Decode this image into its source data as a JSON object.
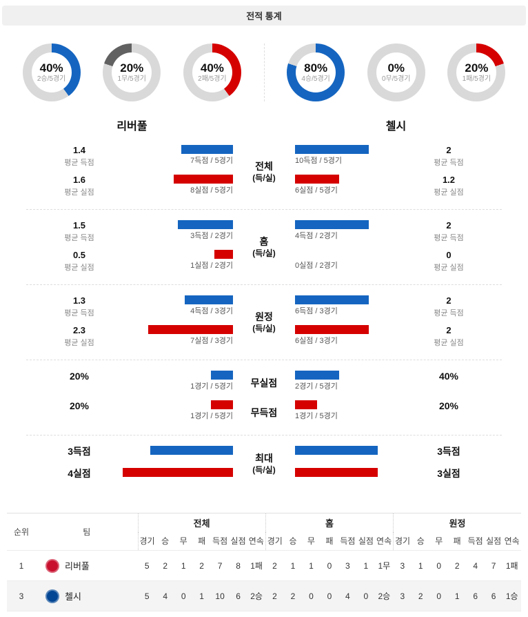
{
  "colors": {
    "blue": "#1565c0",
    "red": "#d50000",
    "dark": "#616161",
    "gray": "#d9d9d9"
  },
  "header": {
    "title": "전적 통계"
  },
  "teams": {
    "left": {
      "name": "리버풀",
      "logo_color": "#c8102e"
    },
    "right": {
      "name": "첼시",
      "logo_color": "#034694"
    }
  },
  "chart_data": {
    "types": [
      "donut",
      "bar",
      "table"
    ],
    "donuts": {
      "left": [
        {
          "pct": 40,
          "label": "40%",
          "sub": "2승/5경기",
          "color": "blue",
          "reverse": false
        },
        {
          "pct": 20,
          "label": "20%",
          "sub": "1무/5경기",
          "color": "dark",
          "reverse": true
        },
        {
          "pct": 40,
          "label": "40%",
          "sub": "2패/5경기",
          "color": "red",
          "reverse": false
        }
      ],
      "right": [
        {
          "pct": 80,
          "label": "80%",
          "sub": "4승/5경기",
          "color": "blue",
          "reverse": false
        },
        {
          "pct": 0,
          "label": "0%",
          "sub": "0무/5경기",
          "color": "dark",
          "reverse": false
        },
        {
          "pct": 20,
          "label": "20%",
          "sub": "1패/5경기",
          "color": "red",
          "reverse": false
        }
      ]
    },
    "sections": [
      {
        "id": "overall",
        "center": {
          "title": "전체",
          "subtitle": "(득/실)"
        },
        "bar_scale": 53.5,
        "rows": [
          {
            "color": "blue",
            "left": {
              "value": "1.4",
              "value_sub": "평균 득점",
              "bar": 1.4,
              "bar_label": "7득점 / 5경기"
            },
            "right": {
              "value": "2",
              "value_sub": "평균 득점",
              "bar": 2,
              "bar_label": "10득점 / 5경기"
            }
          },
          {
            "color": "red",
            "left": {
              "value": "1.6",
              "value_sub": "평균 실점",
              "bar": 1.6,
              "bar_label": "8실점 / 5경기"
            },
            "right": {
              "value": "1.2",
              "value_sub": "평균 실점",
              "bar": 1.2,
              "bar_label": "6실점 / 5경기"
            }
          }
        ]
      },
      {
        "id": "home",
        "center": {
          "title": "홈",
          "subtitle": "(득/실)"
        },
        "bar_scale": 53.5,
        "rows": [
          {
            "color": "blue",
            "left": {
              "value": "1.5",
              "value_sub": "평균 득점",
              "bar": 1.5,
              "bar_label": "3득점 / 2경기"
            },
            "right": {
              "value": "2",
              "value_sub": "평균 득점",
              "bar": 2,
              "bar_label": "4득점 / 2경기"
            }
          },
          {
            "color": "red",
            "left": {
              "value": "0.5",
              "value_sub": "평균 실점",
              "bar": 0.5,
              "bar_label": "1실점 / 2경기"
            },
            "right": {
              "value": "0",
              "value_sub": "평균 실점",
              "bar": 0,
              "bar_label": "0실점 / 2경기"
            }
          }
        ]
      },
      {
        "id": "away",
        "center": {
          "title": "원정",
          "subtitle": "(득/실)"
        },
        "bar_scale": 53.5,
        "rows": [
          {
            "color": "blue",
            "left": {
              "value": "1.3",
              "value_sub": "평균 득점",
              "bar": 1.3,
              "bar_label": "4득점 / 3경기"
            },
            "right": {
              "value": "2",
              "value_sub": "평균 득점",
              "bar": 2,
              "bar_label": "6득점 / 3경기"
            }
          },
          {
            "color": "red",
            "left": {
              "value": "2.3",
              "value_sub": "평균 실점",
              "bar": 2.3,
              "bar_label": "7실점 / 3경기"
            },
            "right": {
              "value": "2",
              "value_sub": "평균 실점",
              "bar": 2,
              "bar_label": "6실점 / 3경기"
            }
          }
        ]
      },
      {
        "id": "shutout",
        "bar_scale": 1.6,
        "rows": [
          {
            "color": "blue",
            "center_label": "무실점",
            "left": {
              "value": "20%",
              "bar": 20,
              "bar_label": "1경기 / 5경기"
            },
            "right": {
              "value": "40%",
              "bar": 40,
              "bar_label": "2경기 / 5경기"
            }
          },
          {
            "color": "red",
            "center_label": "무득점",
            "left": {
              "value": "20%",
              "bar": 20,
              "bar_label": "1경기 / 5경기"
            },
            "right": {
              "value": "20%",
              "bar": 20,
              "bar_label": "1경기 / 5경기"
            }
          }
        ]
      },
      {
        "id": "max",
        "center": {
          "title": "최대",
          "subtitle": "(득/실)"
        },
        "bar_scale": 40,
        "rows": [
          {
            "color": "blue",
            "left": {
              "value": "3득점",
              "bar": 3
            },
            "right": {
              "value": "3득점",
              "bar": 3
            }
          },
          {
            "color": "red",
            "left": {
              "value": "4실점",
              "bar": 4
            },
            "right": {
              "value": "3실점",
              "bar": 3
            }
          }
        ]
      }
    ],
    "table": {
      "rank_header": "순위",
      "team_header": "팀",
      "group_headers": [
        "전체",
        "홈",
        "원정"
      ],
      "stat_headers": [
        "경기",
        "승",
        "무",
        "패",
        "득점",
        "실점",
        "연속"
      ],
      "rows": [
        {
          "rank": "1",
          "team": "리버풀",
          "logo_color": "#c8102e",
          "overall": [
            "5",
            "2",
            "1",
            "2",
            "7",
            "8",
            "1패"
          ],
          "home": [
            "2",
            "1",
            "1",
            "0",
            "3",
            "1",
            "1무"
          ],
          "away": [
            "3",
            "1",
            "0",
            "2",
            "4",
            "7",
            "1패"
          ]
        },
        {
          "rank": "3",
          "team": "첼시",
          "logo_color": "#034694",
          "overall": [
            "5",
            "4",
            "0",
            "1",
            "10",
            "6",
            "2승"
          ],
          "home": [
            "2",
            "2",
            "0",
            "0",
            "4",
            "0",
            "2승"
          ],
          "away": [
            "3",
            "2",
            "0",
            "1",
            "6",
            "6",
            "1승"
          ]
        }
      ]
    }
  }
}
